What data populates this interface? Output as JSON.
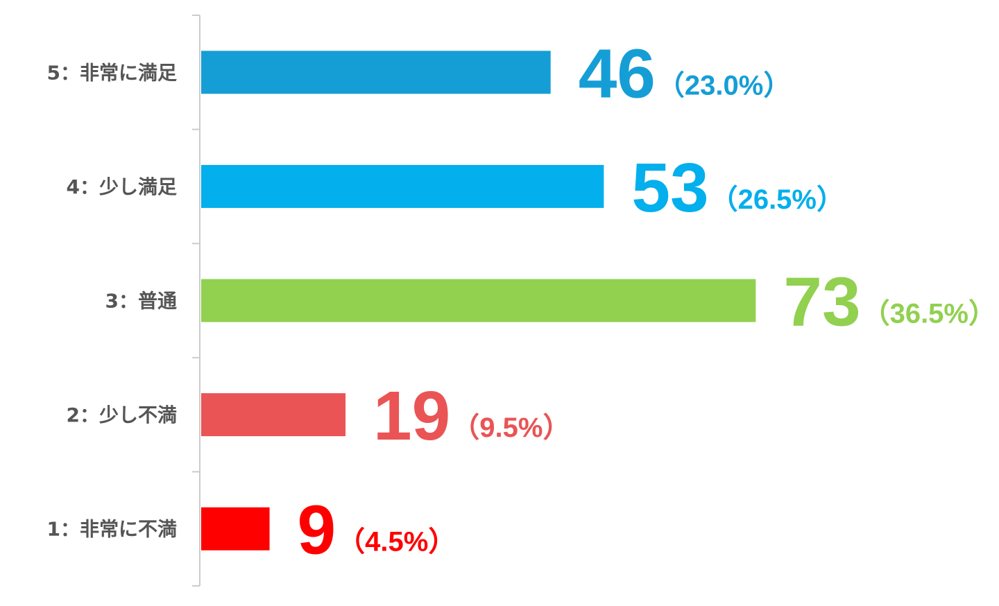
{
  "chart_data": {
    "type": "bar",
    "orientation": "horizontal",
    "categories": [
      "5：非常に満足",
      "4：少し満足",
      "3：普通",
      "2：少し不満",
      "1：非常に不満"
    ],
    "values": [
      46,
      53,
      73,
      19,
      9
    ],
    "colors": [
      "#159ed6",
      "#03afec",
      "#92d050",
      "#ea5455",
      "#ff0000"
    ],
    "percent_labels": [
      "（23.0%）",
      "（26.5%）",
      "（36.5%）",
      "（9.5%）",
      "（4.5%）"
    ]
  }
}
